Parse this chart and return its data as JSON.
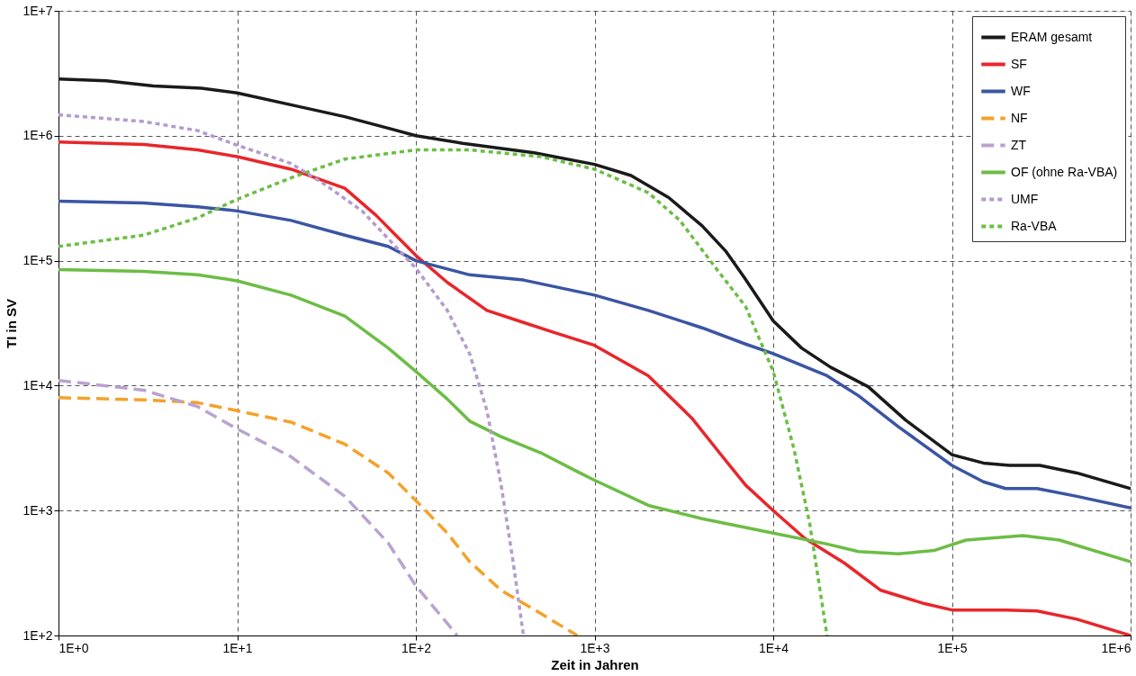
{
  "chart_data": {
    "type": "line",
    "xlabel": "Zeit in Jahren",
    "ylabel": "TI in SV",
    "log": "xy",
    "grid": true,
    "legend": "top right",
    "marker": "none",
    "xlim": [
      1,
      1000000
    ],
    "ylim": [
      100,
      10000000
    ],
    "xticks": [
      {
        "value": 1,
        "label": "1E+0"
      },
      {
        "value": 10,
        "label": "1E+1"
      },
      {
        "value": 100,
        "label": "1E+2"
      },
      {
        "value": 1000,
        "label": "1E+3"
      },
      {
        "value": 10000,
        "label": "1E+4"
      },
      {
        "value": 100000,
        "label": "1E+5"
      },
      {
        "value": 1000000,
        "label": "1E+6"
      }
    ],
    "yticks": [
      {
        "value": 100,
        "label": "1E+2"
      },
      {
        "value": 1000,
        "label": "1E+3"
      },
      {
        "value": 10000,
        "label": "1E+4"
      },
      {
        "value": 100000,
        "label": "1E+5"
      },
      {
        "value": 1000000,
        "label": "1E+6"
      },
      {
        "value": 10000000,
        "label": "1E+7"
      }
    ],
    "series": [
      {
        "name": "ERAM gesamt",
        "color": "#1a1a1a",
        "line_style": "solid",
        "x": [
          1,
          1.85,
          3.4,
          6.3,
          10,
          21,
          40,
          73,
          100,
          183,
          460,
          1000,
          1600,
          2600,
          4000,
          5400,
          6900,
          10000,
          14400,
          21000,
          34000,
          55000,
          100000,
          150000,
          210000,
          310000,
          500000,
          1000000
        ],
        "values": [
          2850000,
          2750000,
          2500000,
          2400000,
          2200000,
          1740000,
          1420000,
          1130000,
          1000000,
          870000,
          730000,
          590000,
          480000,
          320000,
          190000,
          120000,
          73000,
          33000,
          20000,
          14000,
          9800,
          5300,
          2800,
          2400,
          2300,
          2300,
          2000,
          1500
        ]
      },
      {
        "name": "SF",
        "color": "#e8262b",
        "line_style": "solid",
        "x": [
          1,
          3,
          6,
          10,
          20,
          40,
          60,
          100,
          150,
          250,
          400,
          600,
          1000,
          2000,
          3500,
          5000,
          7000,
          10000,
          15000,
          25000,
          40000,
          70000,
          100000,
          200000,
          300000,
          500000,
          1000000
        ],
        "values": [
          890000,
          850000,
          770000,
          680000,
          540000,
          380000,
          230000,
          110000,
          67000,
          40000,
          32000,
          26500,
          21000,
          12000,
          5500,
          2900,
          1600,
          1000,
          600,
          380,
          230,
          180,
          160,
          160,
          157,
          135,
          100
        ]
      },
      {
        "name": "WF",
        "color": "#3b55a3",
        "line_style": "solid",
        "x": [
          1,
          3,
          6,
          10,
          20,
          40,
          70,
          100,
          200,
          400,
          1000,
          2000,
          4000,
          7000,
          10000,
          20000,
          30000,
          50000,
          100000,
          150000,
          200000,
          300000,
          500000,
          1000000
        ],
        "values": [
          300000,
          290000,
          270000,
          250000,
          210000,
          160000,
          130000,
          100000,
          77000,
          70000,
          53000,
          40000,
          29000,
          21500,
          18000,
          12000,
          8300,
          4700,
          2300,
          1700,
          1500,
          1500,
          1300,
          1050
        ]
      },
      {
        "name": "NF",
        "color": "#f5a12a",
        "line_style": "dashed",
        "x": [
          1,
          3,
          6,
          10,
          20,
          40,
          70,
          100,
          150,
          200,
          300,
          500,
          800
        ],
        "values": [
          8000,
          7700,
          7300,
          6300,
          5100,
          3400,
          2000,
          1200,
          660,
          390,
          230,
          150,
          100
        ]
      },
      {
        "name": "ZT",
        "color": "#b9a3d0",
        "line_style": "dashed",
        "x": [
          1,
          3,
          6,
          10,
          20,
          40,
          70,
          100,
          150,
          170
        ],
        "values": [
          11000,
          9200,
          6800,
          4500,
          2700,
          1300,
          550,
          250,
          125,
          100
        ]
      },
      {
        "name": "OF (ohne Ra-VBA)",
        "color": "#6cbd45",
        "line_style": "solid",
        "x": [
          1,
          3,
          6,
          10,
          20,
          40,
          70,
          100,
          150,
          200,
          300,
          500,
          800,
          1000,
          2000,
          4000,
          10000,
          20000,
          30000,
          50000,
          80000,
          120000,
          250000,
          400000,
          1000000
        ],
        "values": [
          85000,
          82000,
          77000,
          69000,
          53000,
          36000,
          20000,
          13000,
          7800,
          5200,
          3900,
          2900,
          2050,
          1750,
          1100,
          860,
          660,
          540,
          470,
          450,
          480,
          580,
          630,
          580,
          390
        ]
      },
      {
        "name": "UMF",
        "color": "#b39bd0",
        "line_style": "dotted",
        "x": [
          1,
          3,
          6,
          10,
          20,
          30,
          50,
          70,
          100,
          150,
          200,
          250,
          300,
          350,
          400
        ],
        "values": [
          1470000,
          1300000,
          1100000,
          840000,
          600000,
          420000,
          250000,
          150000,
          87000,
          40000,
          18000,
          6300,
          1600,
          390,
          100
        ]
      },
      {
        "name": "Ra-VBA",
        "color": "#6cbd45",
        "line_style": "dotted",
        "x": [
          1,
          3,
          6,
          10,
          20,
          40,
          100,
          200,
          500,
          1000,
          2000,
          3000,
          5000,
          7000,
          10000,
          13000,
          16000,
          20000
        ],
        "values": [
          130000,
          160000,
          220000,
          310000,
          460000,
          650000,
          770000,
          770000,
          680000,
          540000,
          350000,
          210000,
          80000,
          43000,
          13000,
          3200,
          790,
          100
        ]
      }
    ]
  }
}
